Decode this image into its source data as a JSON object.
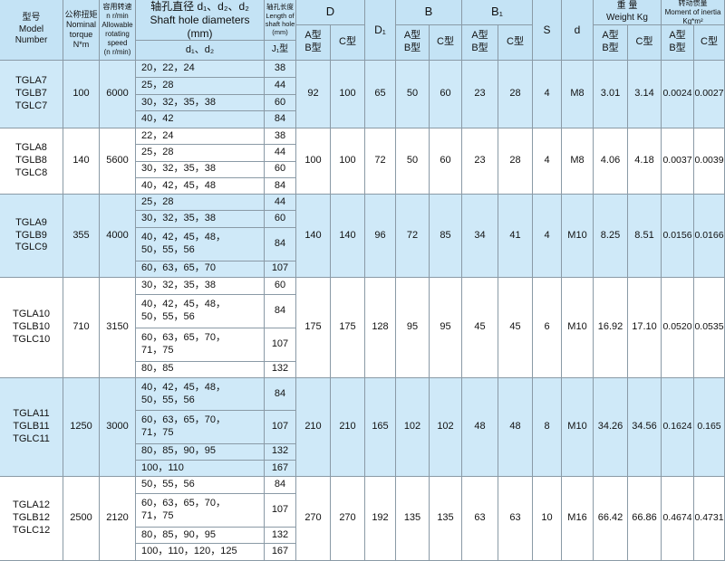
{
  "header": {
    "model": [
      "型号",
      "Model",
      "Number"
    ],
    "torque": [
      "公称扭矩",
      "Nominal",
      "torque",
      "N*m"
    ],
    "speed": [
      "容用转速",
      "n r/min",
      "Allowable",
      "rotating",
      "speed",
      "(n r/min)"
    ],
    "shaft": {
      "title": [
        "轴孔直径 d₁、d₂、d₂",
        "Shaft hole diameters",
        "(mm)"
      ],
      "sub": [
        "d₁、d₂"
      ]
    },
    "length": {
      "title": [
        "轴孔长度",
        "Length of",
        "shaft hole",
        "(mm)"
      ],
      "sub": [
        "J₁型"
      ]
    },
    "D": {
      "title": [
        "D"
      ],
      "sub": [
        [
          "A型",
          "B型"
        ],
        [
          "C型"
        ]
      ]
    },
    "D1": [
      "D₁"
    ],
    "B": {
      "title": [
        "B"
      ],
      "sub": [
        [
          "A型",
          "B型"
        ],
        [
          "C型"
        ]
      ]
    },
    "B1": {
      "title": [
        "B₁"
      ],
      "sub": [
        [
          "A型",
          "B型"
        ],
        [
          "C型"
        ]
      ]
    },
    "S": [
      "S"
    ],
    "d": [
      "d"
    ],
    "weight": {
      "title": [
        "重 量",
        "Weight Kg"
      ],
      "sub": [
        [
          "A型",
          "B型"
        ],
        [
          "C型"
        ]
      ]
    },
    "inertia": {
      "title": [
        "转动惯量",
        "Moment of inertia",
        "Kg*m²"
      ],
      "sub": [
        [
          "A型",
          "B型"
        ],
        [
          "C型"
        ]
      ]
    }
  },
  "groups": [
    {
      "models": [
        "TGLA7",
        "TGLB7",
        "TGLC7"
      ],
      "torque": "100",
      "speed": "6000",
      "shaft": [
        {
          "diameters": [
            "20，22，24"
          ],
          "length": "38"
        },
        {
          "diameters": [
            "25，28"
          ],
          "length": "44"
        },
        {
          "diameters": [
            "30，32，35，38"
          ],
          "length": "60"
        },
        {
          "diameters": [
            "40，42"
          ],
          "length": "84"
        }
      ],
      "D": [
        "92",
        "100"
      ],
      "D1": "65",
      "B": [
        "50",
        "60"
      ],
      "B1": [
        "23",
        "28"
      ],
      "S": "4",
      "d": "M8",
      "weight": [
        "3.01",
        "3.14"
      ],
      "inertia": [
        "0.0024",
        "0.0027"
      ]
    },
    {
      "models": [
        "TGLA8",
        "TGLB8",
        "TGLC8"
      ],
      "torque": "140",
      "speed": "5600",
      "shaft": [
        {
          "diameters": [
            "22，24"
          ],
          "length": "38"
        },
        {
          "diameters": [
            "25，28"
          ],
          "length": "44"
        },
        {
          "diameters": [
            "30，32，35，38"
          ],
          "length": "60"
        },
        {
          "diameters": [
            "40，42，45，48"
          ],
          "length": "84"
        }
      ],
      "D": [
        "100",
        "100"
      ],
      "D1": "72",
      "B": [
        "50",
        "60"
      ],
      "B1": [
        "23",
        "28"
      ],
      "S": "4",
      "d": "M8",
      "weight": [
        "4.06",
        "4.18"
      ],
      "inertia": [
        "0.0037",
        "0.0039"
      ]
    },
    {
      "models": [
        "TGLA9",
        "TGLB9",
        "TGLC9"
      ],
      "torque": "355",
      "speed": "4000",
      "shaft": [
        {
          "diameters": [
            "25，28"
          ],
          "length": "44"
        },
        {
          "diameters": [
            "30，32，35，38"
          ],
          "length": "60"
        },
        {
          "diameters": [
            "40，42，45，48，",
            "50，55，56"
          ],
          "length": "84"
        },
        {
          "diameters": [
            "60，63，65，70"
          ],
          "length": "107"
        }
      ],
      "D": [
        "140",
        "140"
      ],
      "D1": "96",
      "B": [
        "72",
        "85"
      ],
      "B1": [
        "34",
        "41"
      ],
      "S": "4",
      "d": "M10",
      "weight": [
        "8.25",
        "8.51"
      ],
      "inertia": [
        "0.0156",
        "0.0166"
      ]
    },
    {
      "models": [
        "TGLA10",
        "TGLB10",
        "TGLC10"
      ],
      "torque": "710",
      "speed": "3150",
      "shaft": [
        {
          "diameters": [
            "30，32，35，38"
          ],
          "length": "60"
        },
        {
          "diameters": [
            "40，42，45，48，",
            "50，55，56"
          ],
          "length": "84"
        },
        {
          "diameters": [
            "60，63，65，70，",
            "71，75"
          ],
          "length": "107"
        },
        {
          "diameters": [
            "80，85"
          ],
          "length": "132"
        }
      ],
      "D": [
        "175",
        "175"
      ],
      "D1": "128",
      "B": [
        "95",
        "95"
      ],
      "B1": [
        "45",
        "45"
      ],
      "S": "6",
      "d": "M10",
      "weight": [
        "16.92",
        "17.10"
      ],
      "inertia": [
        "0.0520",
        "0.0535"
      ]
    },
    {
      "models": [
        "TGLA11",
        "TGLB11",
        "TGLC11"
      ],
      "torque": "1250",
      "speed": "3000",
      "shaft": [
        {
          "diameters": [
            "40，42，45，48，",
            "50，55，56"
          ],
          "length": "84"
        },
        {
          "diameters": [
            "60，63，65，70，",
            "71，75"
          ],
          "length": "107"
        },
        {
          "diameters": [
            "80，85，90，95"
          ],
          "length": "132"
        },
        {
          "diameters": [
            "100，110"
          ],
          "length": "167"
        }
      ],
      "D": [
        "210",
        "210"
      ],
      "D1": "165",
      "B": [
        "102",
        "102"
      ],
      "B1": [
        "48",
        "48"
      ],
      "S": "8",
      "d": "M10",
      "weight": [
        "34.26",
        "34.56"
      ],
      "inertia": [
        "0.1624",
        "0.165"
      ]
    },
    {
      "models": [
        "TGLA12",
        "TGLB12",
        "TGLC12"
      ],
      "torque": "2500",
      "speed": "2120",
      "shaft": [
        {
          "diameters": [
            "50，55，56"
          ],
          "length": "84"
        },
        {
          "diameters": [
            "60，63，65，70，",
            "71，75"
          ],
          "length": "107"
        },
        {
          "diameters": [
            "80，85，90，95"
          ],
          "length": "132"
        },
        {
          "diameters": [
            "100，110，120，125"
          ],
          "length": "167"
        }
      ],
      "D": [
        "270",
        "270"
      ],
      "D1": "192",
      "B": [
        "135",
        "135"
      ],
      "B1": [
        "63",
        "63"
      ],
      "S": "10",
      "d": "M16",
      "weight": [
        "66.42",
        "66.86"
      ],
      "inertia": [
        "0.4674",
        "0.4731"
      ]
    }
  ]
}
